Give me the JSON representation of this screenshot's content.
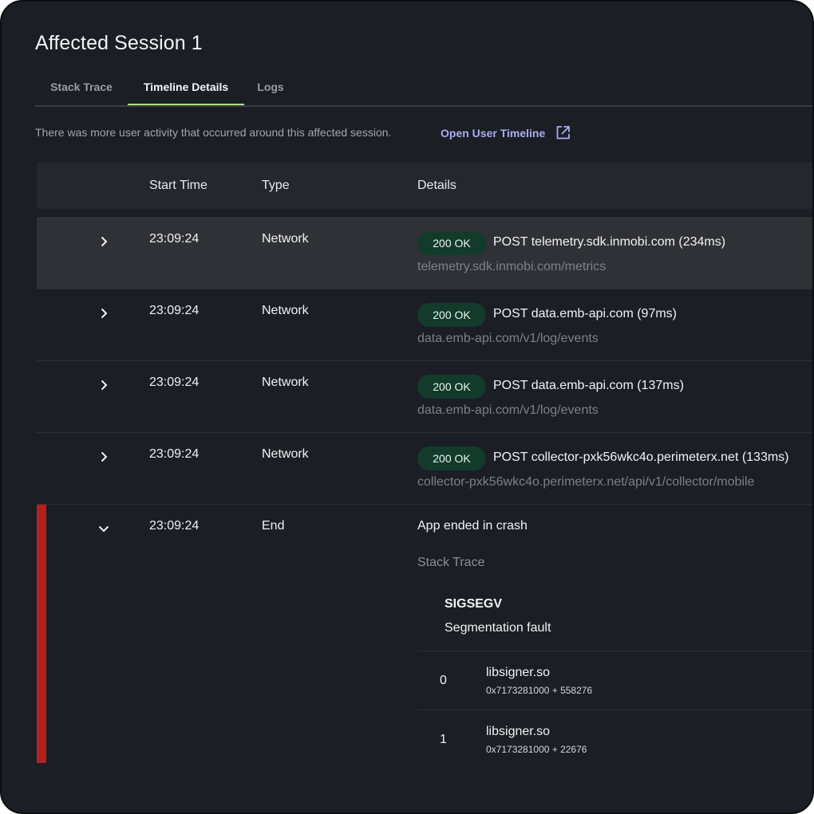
{
  "page": {
    "title": "Affected Session 1"
  },
  "tabs": [
    {
      "label": "Stack Trace",
      "active": false
    },
    {
      "label": "Timeline Details",
      "active": true
    },
    {
      "label": "Logs",
      "active": false
    }
  ],
  "info": {
    "text": "There was more user activity that occurred around this affected session.",
    "link_label": "Open User Timeline",
    "link_icon": "external-link-icon"
  },
  "table": {
    "headers": {
      "start_time": "Start Time",
      "type": "Type",
      "details": "Details"
    },
    "rows": [
      {
        "time": "23:09:24",
        "type": "Network",
        "status": "200 OK",
        "request": "POST telemetry.sdk.inmobi.com (234ms)",
        "url": "telemetry.sdk.inmobi.com/metrics",
        "expanded": false,
        "highlighted": true
      },
      {
        "time": "23:09:24",
        "type": "Network",
        "status": "200 OK",
        "request": "POST data.emb-api.com (97ms)",
        "url": "data.emb-api.com/v1/log/events",
        "expanded": false,
        "highlighted": false
      },
      {
        "time": "23:09:24",
        "type": "Network",
        "status": "200 OK",
        "request": "POST data.emb-api.com (137ms)",
        "url": "data.emb-api.com/v1/log/events",
        "expanded": false,
        "highlighted": false
      },
      {
        "time": "23:09:24",
        "type": "Network",
        "status": "200 OK",
        "request": "POST collector-pxk56wkc4o.perimeterx.net (133ms)",
        "url": "collector-pxk56wkc4o.perimeterx.net/api/v1/collector/mobile",
        "expanded": false,
        "highlighted": false
      }
    ],
    "crash": {
      "time": "23:09:24",
      "type": "End",
      "message": "App ended in crash",
      "stack_label": "Stack Trace",
      "signal": "SIGSEGV",
      "signal_desc": "Segmentation fault",
      "frames": [
        {
          "index": "0",
          "lib": "libsigner.so",
          "address": "0x7173281000 + 558276"
        },
        {
          "index": "1",
          "lib": "libsigner.so",
          "address": "0x7173281000 + 22676"
        }
      ],
      "expanded": true
    }
  },
  "colors": {
    "background": "#1b1e24",
    "tab_active_underline": "#a9e37c",
    "link": "#a9aef0",
    "badge_bg": "#133b2c",
    "crash_bar": "#b3211f"
  }
}
